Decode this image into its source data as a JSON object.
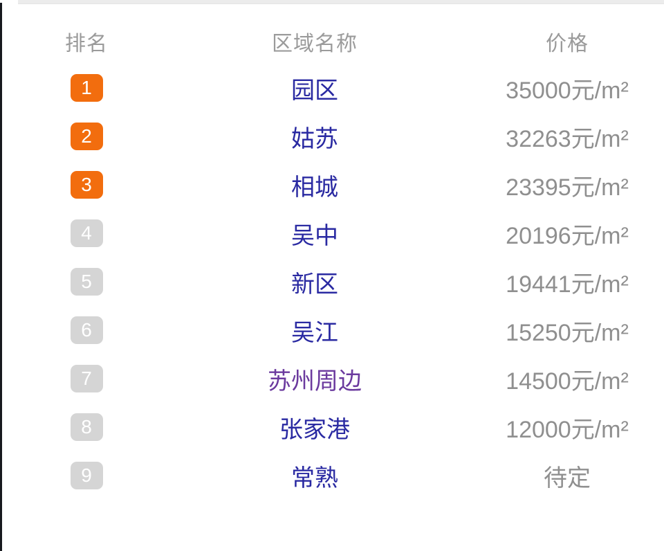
{
  "colors": {
    "badge_top": "#f26d0e",
    "badge_normal": "#d5d5d5",
    "region_link": "#2a2aa2",
    "region_link_visited": "#6b3a9e",
    "price_text": "#8f8f8f",
    "header_text": "#9b9b9b",
    "left_edge": "#17191e",
    "top_divider": "#ececec"
  },
  "table": {
    "columns": [
      {
        "id": "rank",
        "label": "排名"
      },
      {
        "id": "region",
        "label": "区域名称"
      },
      {
        "id": "price",
        "label": "价格"
      }
    ],
    "rows": [
      {
        "rank": "1",
        "region": "园区",
        "price": "35000元/m²",
        "tier": "top",
        "visited": false
      },
      {
        "rank": "2",
        "region": "姑苏",
        "price": "32263元/m²",
        "tier": "top",
        "visited": false
      },
      {
        "rank": "3",
        "region": "相城",
        "price": "23395元/m²",
        "tier": "top",
        "visited": false
      },
      {
        "rank": "4",
        "region": "吴中",
        "price": "20196元/m²",
        "tier": "normal",
        "visited": false
      },
      {
        "rank": "5",
        "region": "新区",
        "price": "19441元/m²",
        "tier": "normal",
        "visited": false
      },
      {
        "rank": "6",
        "region": "吴江",
        "price": "15250元/m²",
        "tier": "normal",
        "visited": false
      },
      {
        "rank": "7",
        "region": "苏州周边",
        "price": "14500元/m²",
        "tier": "normal",
        "visited": true
      },
      {
        "rank": "8",
        "region": "张家港",
        "price": "12000元/m²",
        "tier": "normal",
        "visited": false
      },
      {
        "rank": "9",
        "region": "常熟",
        "price": "待定",
        "tier": "normal",
        "visited": false
      }
    ]
  }
}
